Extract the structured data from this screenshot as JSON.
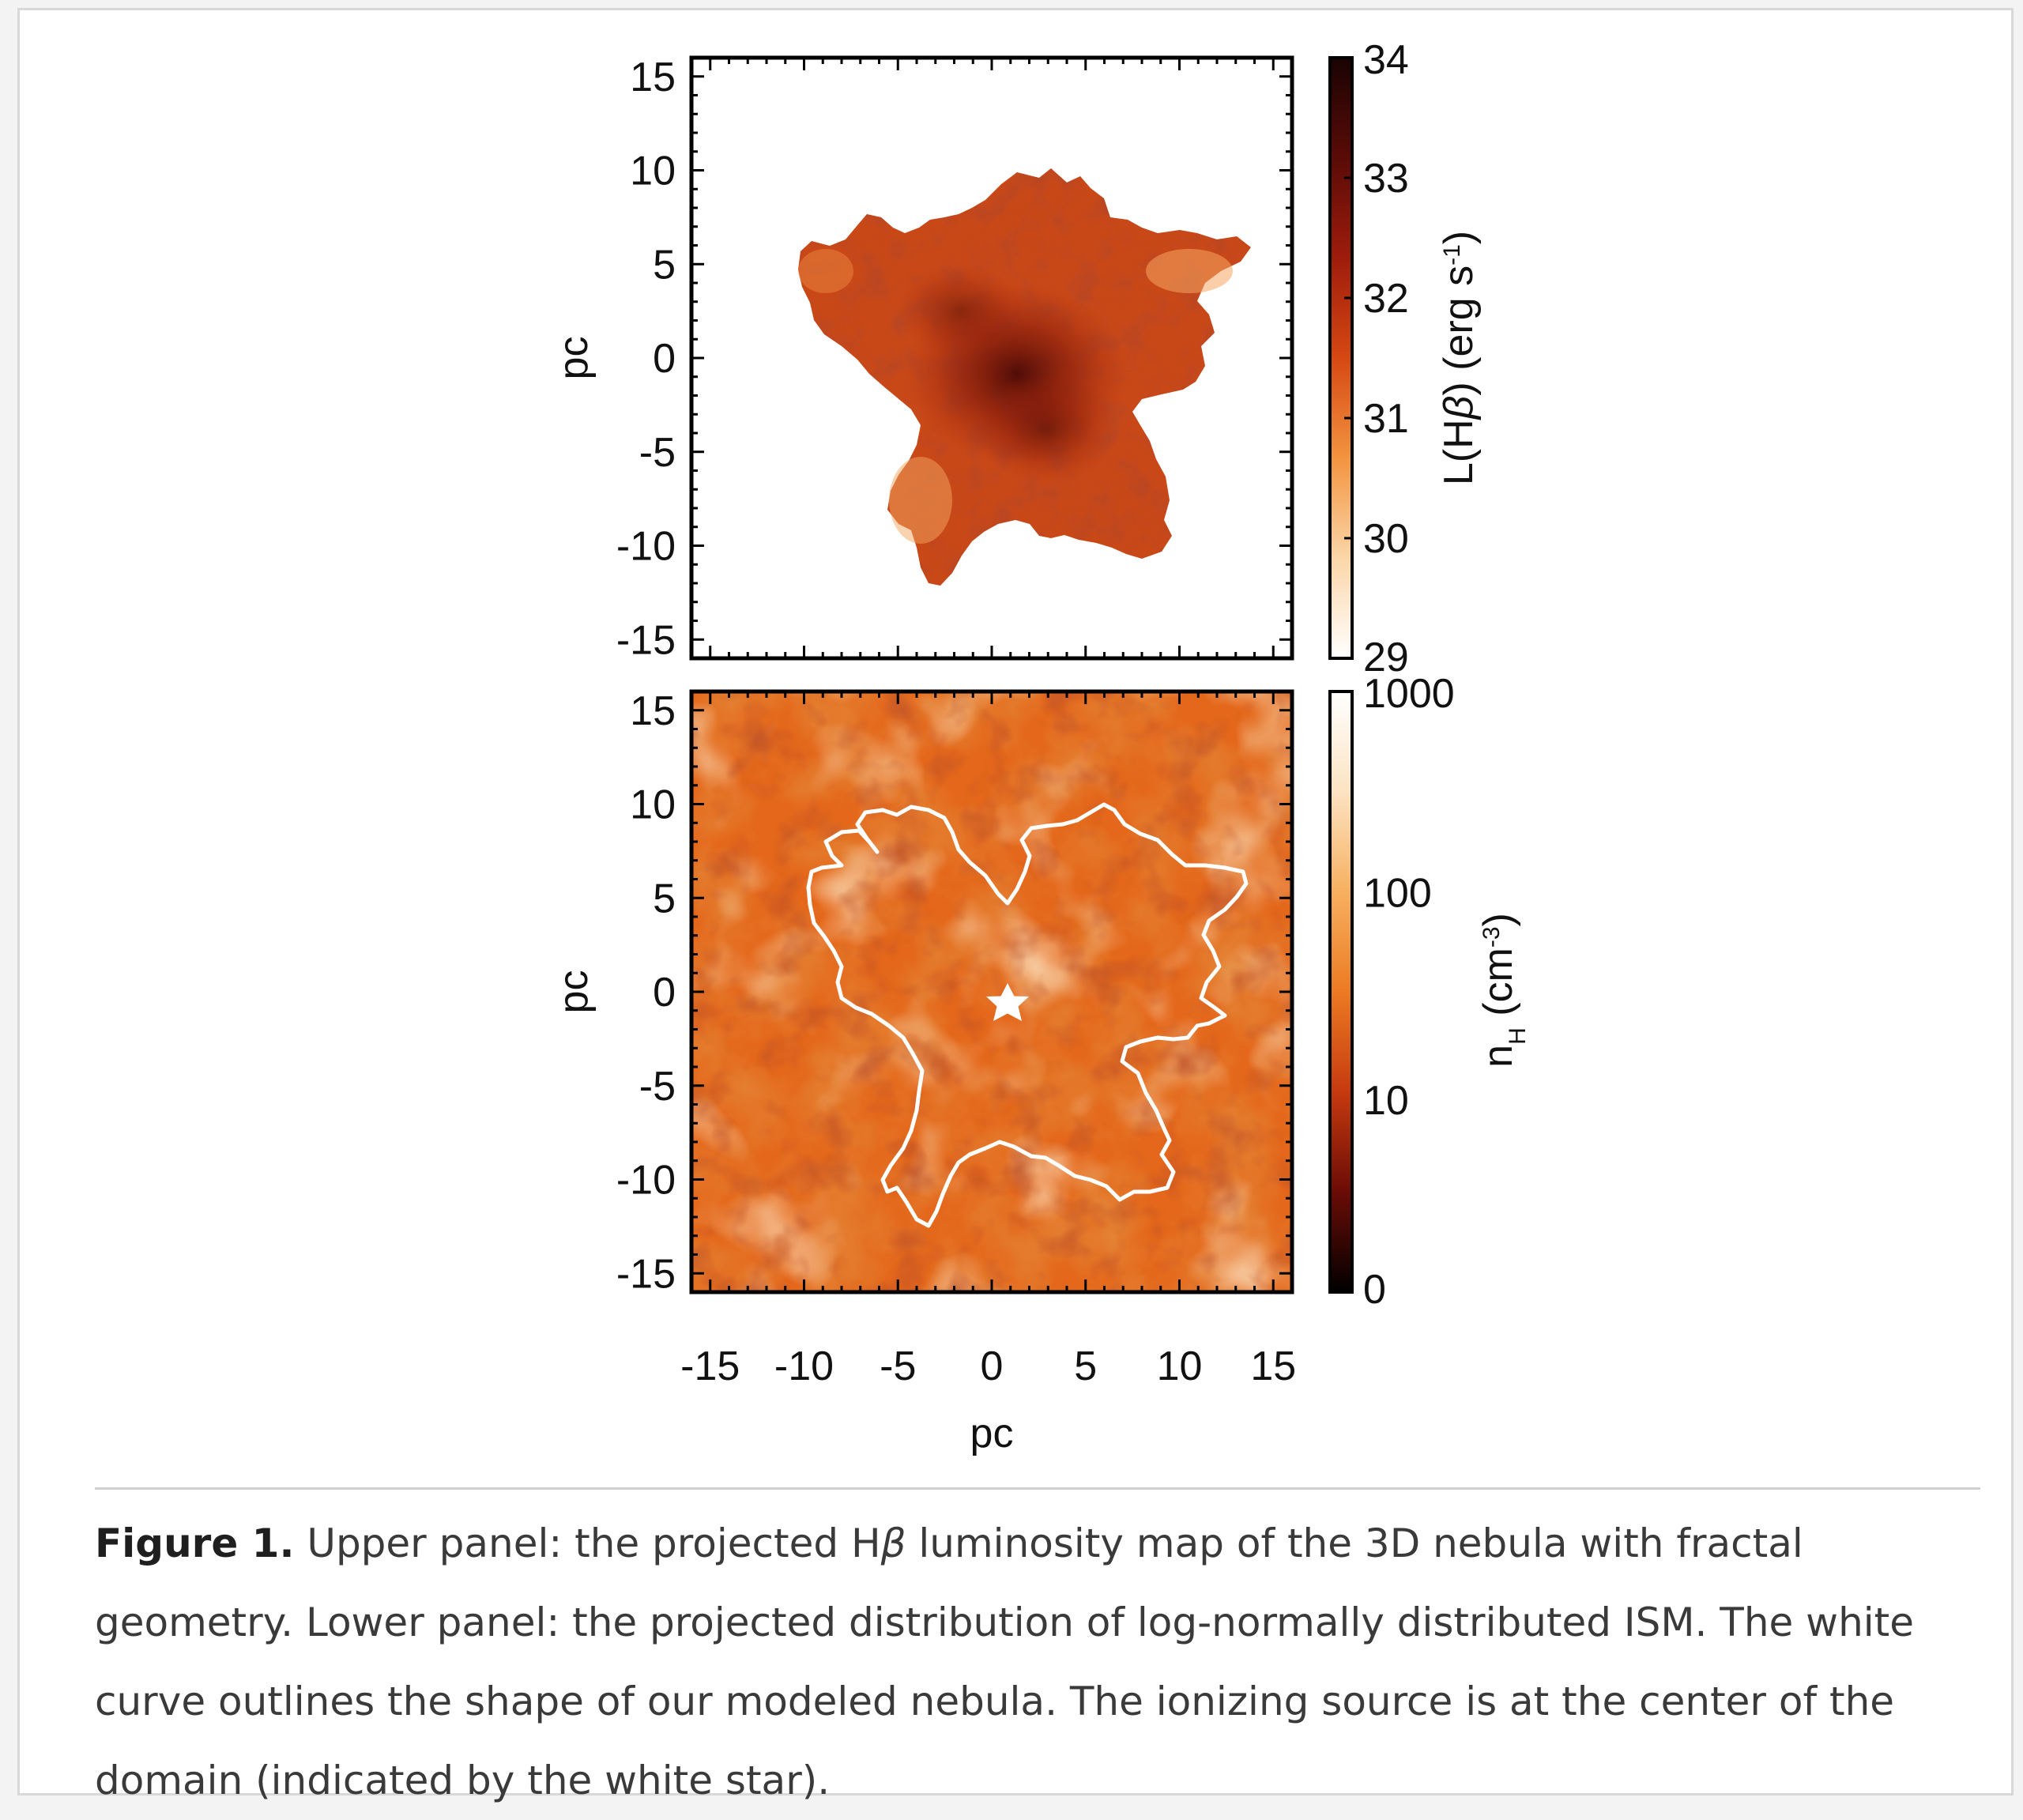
{
  "figure": {
    "caption_label": "Figure 1.",
    "caption_text_before_beta": " Upper panel: the projected H",
    "caption_beta": "β",
    "caption_text_after_beta": " luminosity map of the 3D nebula with fractal geometry. Lower panel: the projected distribution of log-normally distributed ISM. The white curve outlines the shape of our modeled nebula. The ionizing source is at the center of the domain (indicated by the white star)."
  },
  "chart_data": [
    {
      "type": "heatmap",
      "panel": "upper",
      "ylabel": "pc",
      "xlim": [
        -16,
        16
      ],
      "ylim": [
        -16,
        16
      ],
      "y_ticks": [
        15,
        10,
        5,
        0,
        -5,
        -10,
        -15
      ],
      "colorbar": {
        "label": "L(Hβ) (erg s-1)",
        "ticks": [
          34,
          33,
          32,
          31,
          30,
          29
        ],
        "range": [
          29,
          34
        ],
        "colors": [
          "#ffffff",
          "#fbd6a8",
          "#f39440",
          "#d64812",
          "#9e1c0c",
          "#5a0b07",
          "#1a0303"
        ]
      }
    },
    {
      "type": "heatmap",
      "panel": "lower",
      "xlabel": "pc",
      "ylabel": "pc",
      "xlim": [
        -16,
        16
      ],
      "ylim": [
        -16,
        16
      ],
      "x_ticks": [
        -15,
        -10,
        -5,
        0,
        5,
        10,
        15
      ],
      "y_ticks": [
        15,
        10,
        5,
        0,
        -5,
        -10,
        -15
      ],
      "source_position": [
        0,
        0
      ],
      "colorbar": {
        "label": "nH (cm-3)",
        "ticks": [
          1000,
          100,
          10,
          0
        ],
        "colors": [
          "#000000",
          "#6b0c06",
          "#c63a0f",
          "#ec7a22",
          "#f7b060",
          "#fce3c2",
          "#ffffff"
        ]
      }
    }
  ]
}
